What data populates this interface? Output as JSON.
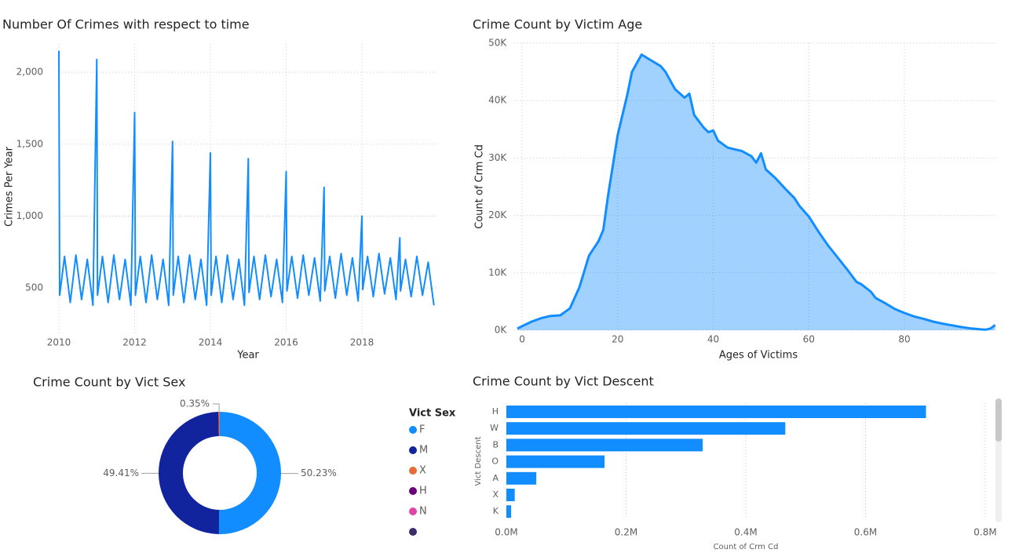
{
  "chart_data": [
    {
      "type": "line",
      "title": "Number Of Crimes with respect to time",
      "x_label": "Year",
      "y_label": "Crimes Per Year",
      "color": "#118dff",
      "grid": true,
      "x": [
        2010,
        2010.02,
        2010.15,
        2010.3,
        2010.45,
        2010.6,
        2010.75,
        2010.9,
        2011,
        2011.02,
        2011.15,
        2011.3,
        2011.45,
        2011.6,
        2011.75,
        2011.9,
        2012,
        2012.02,
        2012.15,
        2012.3,
        2012.45,
        2012.6,
        2012.75,
        2012.9,
        2013,
        2013.02,
        2013.15,
        2013.3,
        2013.45,
        2013.6,
        2013.75,
        2013.9,
        2014,
        2014.02,
        2014.15,
        2014.3,
        2014.45,
        2014.6,
        2014.75,
        2014.9,
        2015,
        2015.02,
        2015.15,
        2015.3,
        2015.45,
        2015.6,
        2015.75,
        2015.9,
        2016,
        2016.02,
        2016.15,
        2016.3,
        2016.45,
        2016.6,
        2016.75,
        2016.9,
        2017,
        2017.02,
        2017.15,
        2017.3,
        2017.45,
        2017.6,
        2017.75,
        2017.9,
        2018,
        2018.02,
        2018.15,
        2018.3,
        2018.45,
        2018.6,
        2018.75,
        2018.9,
        2019,
        2019.02,
        2019.15,
        2019.3,
        2019.45,
        2019.6,
        2019.75,
        2019.9
      ],
      "values": [
        2150,
        450,
        720,
        400,
        730,
        420,
        700,
        380,
        2090,
        450,
        720,
        400,
        730,
        420,
        700,
        380,
        1720,
        450,
        720,
        400,
        730,
        420,
        700,
        380,
        1520,
        450,
        720,
        400,
        730,
        420,
        700,
        380,
        1440,
        450,
        720,
        400,
        730,
        420,
        700,
        380,
        1400,
        470,
        720,
        420,
        730,
        440,
        700,
        400,
        1310,
        480,
        720,
        430,
        730,
        450,
        710,
        410,
        1200,
        480,
        720,
        430,
        740,
        450,
        710,
        410,
        1000,
        490,
        720,
        440,
        740,
        460,
        710,
        420,
        850,
        480,
        700,
        440,
        720,
        450,
        680,
        380
      ],
      "xlim": [
        2010,
        2020
      ],
      "xticks": [
        2010,
        2012,
        2014,
        2016,
        2018
      ],
      "ylim": [
        185,
        2200
      ],
      "yticks": [
        500,
        {
          "value": 1000,
          "label": "1,000"
        },
        {
          "value": 1500,
          "label": "1,500"
        },
        {
          "value": 2000,
          "label": "2,000"
        }
      ]
    },
    {
      "type": "area",
      "title": "Crime Count by Victim Age",
      "x_label": "Ages of Victims",
      "y_label": "Count of Crm Cd",
      "color": "#118dff",
      "grid": true,
      "x": [
        -1,
        0,
        2,
        4,
        6,
        8,
        10,
        12,
        14,
        16,
        17,
        18,
        20,
        22,
        23,
        25,
        27,
        29,
        30,
        32,
        34,
        35,
        36,
        38,
        39,
        40,
        41,
        43,
        46,
        48,
        49,
        50,
        51,
        53,
        55,
        57,
        58,
        60,
        62,
        64,
        66,
        68,
        70,
        71,
        73,
        74,
        76,
        78,
        80,
        82,
        84,
        86,
        88,
        90,
        92,
        94,
        96,
        97,
        98,
        99
      ],
      "values": [
        300,
        700,
        1500,
        2100,
        2500,
        2600,
        3800,
        7500,
        13000,
        15500,
        17500,
        23500,
        34000,
        41000,
        45000,
        48000,
        47000,
        46000,
        45000,
        42000,
        40500,
        41200,
        37500,
        35300,
        34500,
        34800,
        33000,
        31800,
        31200,
        30300,
        29200,
        30800,
        28000,
        26500,
        24700,
        23000,
        21700,
        19800,
        17200,
        14800,
        12700,
        10600,
        8400,
        8000,
        6700,
        5600,
        4700,
        3700,
        3000,
        2400,
        2000,
        1500,
        1150,
        850,
        550,
        300,
        150,
        100,
        300,
        900
      ],
      "xlim": [
        -1.6,
        99.5
      ],
      "xticks": [
        0,
        20,
        40,
        60,
        80
      ],
      "ylim": [
        0,
        50000
      ],
      "yticks": [
        {
          "value": 0,
          "label": "0K"
        },
        {
          "value": 10000,
          "label": "10K"
        },
        {
          "value": 20000,
          "label": "20K"
        },
        {
          "value": 30000,
          "label": "30K"
        },
        {
          "value": 40000,
          "label": "40K"
        },
        {
          "value": 50000,
          "label": "50K"
        }
      ]
    },
    {
      "type": "donut",
      "title": "Crime Count by Vict Sex",
      "legend_title": "Vict Sex",
      "categories": [
        "F",
        "M",
        "X",
        "H",
        "N",
        null
      ],
      "values": [
        50.23,
        49.41,
        0.35,
        0.004,
        0.003,
        0.003
      ],
      "value_labels": [
        "50.23%",
        "49.41%",
        "0.35%",
        null,
        null,
        null
      ],
      "colors": [
        "#118dff",
        "#12239e",
        "#e66c37",
        "#6b007b",
        "#e044a7",
        "#3d2a6b"
      ]
    },
    {
      "type": "hbar",
      "title": "Crime Count by Vict Descent",
      "x_label": "Count of Crm Cd",
      "y_label": "Vict Descent",
      "color": "#118dff",
      "grid": true,
      "categories": [
        "H",
        "W",
        "B",
        "O",
        "A",
        "X",
        "K"
      ],
      "values": [
        701000,
        466000,
        328000,
        164000,
        50000,
        14000,
        8000
      ],
      "xlim": [
        0,
        800000
      ],
      "xticks": [
        {
          "value": 0,
          "label": "0.0M"
        },
        {
          "value": 200000,
          "label": "0.2M"
        },
        {
          "value": 400000,
          "label": "0.4M"
        },
        {
          "value": 600000,
          "label": "0.6M"
        },
        {
          "value": 800000,
          "label": "0.8M"
        }
      ]
    }
  ]
}
